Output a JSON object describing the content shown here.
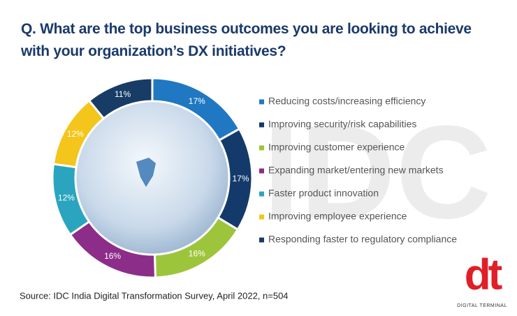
{
  "chart_data": {
    "type": "donut",
    "title": "Q. What are the top business outcomes you are looking to achieve with your organization’s DX initiatives?",
    "categories": [
      "Reducing costs/increasing efficiency",
      "Improving security/risk capabilities",
      "Improving customer experience",
      "Expanding market/entering new markets",
      "Faster product innovation",
      "Improving employee experience",
      "Responding faster to regulatory compliance"
    ],
    "values": [
      17,
      17,
      16,
      16,
      12,
      12,
      11
    ],
    "value_labels": [
      "17%",
      "17%",
      "16%",
      "16%",
      "12%",
      "12%",
      "11%"
    ],
    "colors": [
      "#1f78c1",
      "#143a6b",
      "#9dc53b",
      "#8c2d89",
      "#2ba5bf",
      "#f4c51a",
      "#173c66"
    ],
    "source": "Source: IDC India Digital Transformation Survey, April 2022, n=504",
    "watermark": "IDC",
    "logo": {
      "mark": "dt",
      "name": "DIGITAL TERMINAL"
    }
  }
}
